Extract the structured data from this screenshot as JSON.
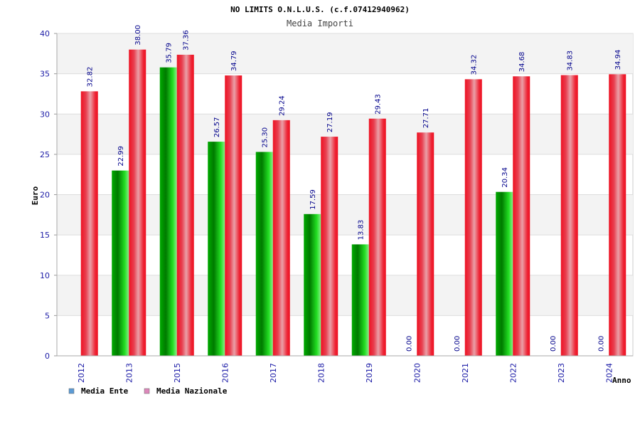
{
  "chart_data": {
    "type": "bar",
    "title": "NO LIMITS O.N.L.U.S. (c.f.07412940962)",
    "subtitle": "Media Importi",
    "xlabel": "Anno",
    "ylabel": "Euro",
    "ylim": [
      0,
      40
    ],
    "yticks": [
      "0",
      "5",
      "10",
      "15",
      "20",
      "25",
      "30",
      "35",
      "40"
    ],
    "grid": true,
    "legend_position": "bottom-left",
    "categories": [
      "2012",
      "2013",
      "2015",
      "2016",
      "2017",
      "2018",
      "2019",
      "2020",
      "2021",
      "2022",
      "2023",
      "2024"
    ],
    "series": [
      {
        "name": "Media Ente",
        "color": "#00aa00",
        "legend_color": "#5b9bd5",
        "values": [
          null,
          22.99,
          35.79,
          26.57,
          25.3,
          17.59,
          13.83,
          0.0,
          0.0,
          20.34,
          0.0,
          0.0
        ],
        "labels": [
          "",
          "22.99",
          "35.79",
          "26.57",
          "25.30",
          "17.59",
          "13.83",
          "0.00",
          "0.00",
          "20.34",
          "0.00",
          "0.00"
        ]
      },
      {
        "name": "Media Nazionale",
        "color": "#ee1122",
        "legend_color": "#dd88bb",
        "values": [
          32.82,
          38.0,
          37.36,
          34.79,
          29.24,
          27.19,
          29.43,
          27.71,
          34.32,
          34.68,
          34.83,
          34.94
        ],
        "labels": [
          "32.82",
          "38.00",
          "37.36",
          "34.79",
          "29.24",
          "27.19",
          "29.43",
          "27.71",
          "34.32",
          "34.68",
          "34.83",
          "34.94"
        ]
      }
    ]
  }
}
